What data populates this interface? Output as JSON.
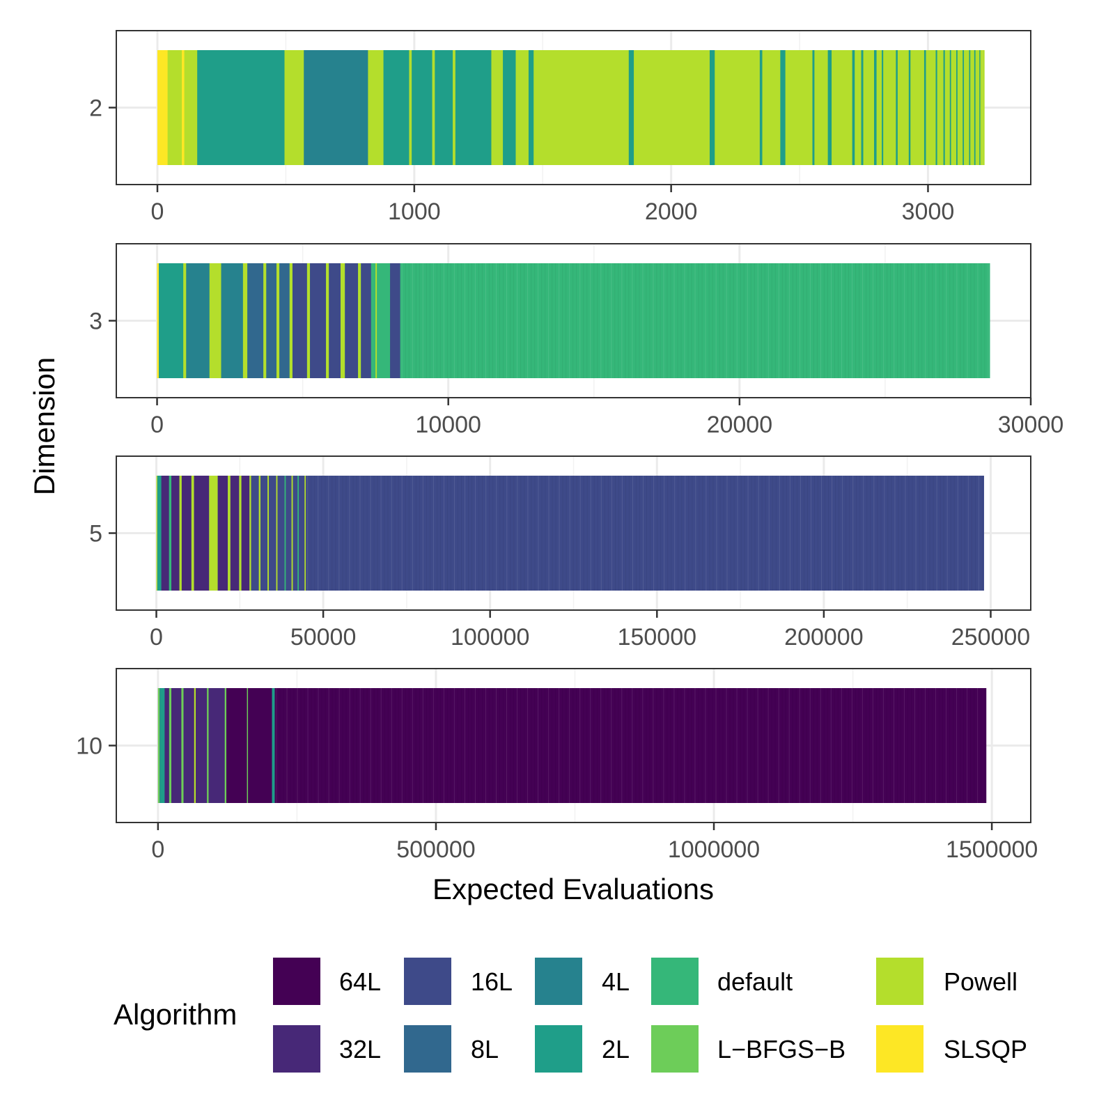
{
  "chart_data": {
    "type": "bar",
    "subtype": "stacked-horizontal-segments",
    "xlabel": "Expected Evaluations",
    "ylabel": "Dimension",
    "legend": {
      "title": "Algorithm",
      "position": "bottom",
      "entries": [
        {
          "key": "64L",
          "label": "64L",
          "color": "#440154"
        },
        {
          "key": "32L",
          "label": "32L",
          "color": "#472877"
        },
        {
          "key": "16L",
          "label": "16L",
          "color": "#3E4A89"
        },
        {
          "key": "8L",
          "label": "8L",
          "color": "#31688E"
        },
        {
          "key": "4L",
          "label": "4L",
          "color": "#26828E"
        },
        {
          "key": "2L",
          "label": "2L",
          "color": "#1F9E89"
        },
        {
          "key": "default",
          "label": "default",
          "color": "#35B779"
        },
        {
          "key": "L-BFGS-B",
          "label": "L−BFGS−B",
          "color": "#6DCD59"
        },
        {
          "key": "Powell",
          "label": "Powell",
          "color": "#B4DE2C"
        },
        {
          "key": "SLSQP",
          "label": "SLSQP",
          "color": "#FDE725"
        }
      ]
    },
    "panels": [
      {
        "dimension": "2",
        "xlim": [
          -160,
          3400
        ],
        "ticks": [
          0,
          1000,
          2000,
          3000
        ],
        "tick_labels": [
          "0",
          "1000",
          "2000",
          "3000"
        ],
        "total": 3220,
        "fill_algorithm": "Powell",
        "segments": [
          [
            "SLSQP",
            0,
            40
          ],
          [
            "Powell",
            40,
            95
          ],
          [
            "SLSQP",
            95,
            105
          ],
          [
            "Powell",
            105,
            155
          ],
          [
            "2L",
            155,
            495
          ],
          [
            "Powell",
            495,
            570
          ],
          [
            "4L",
            570,
            820
          ],
          [
            "Powell",
            820,
            880
          ],
          [
            "2L",
            880,
            980
          ],
          [
            "Powell",
            980,
            990
          ],
          [
            "2L",
            990,
            1070
          ],
          [
            "Powell",
            1070,
            1080
          ],
          [
            "2L",
            1080,
            1150
          ],
          [
            "Powell",
            1150,
            1160
          ],
          [
            "2L",
            1160,
            1300
          ],
          [
            "Powell",
            1300,
            1345
          ],
          [
            "2L",
            1345,
            1395
          ],
          [
            "Powell",
            1395,
            1445
          ],
          [
            "2L",
            1445,
            1465
          ],
          [
            "Powell",
            1465,
            1835
          ],
          [
            "2L",
            1835,
            1855
          ],
          [
            "Powell",
            1855,
            2150
          ],
          [
            "2L",
            2150,
            2170
          ],
          [
            "Powell",
            2170,
            2345
          ],
          [
            "2L",
            2345,
            2355
          ],
          [
            "Powell",
            2355,
            2425
          ],
          [
            "2L",
            2425,
            2445
          ],
          [
            "Powell",
            2445,
            2550
          ],
          [
            "2L",
            2550,
            2558
          ],
          [
            "Powell",
            2558,
            2610
          ],
          [
            "2L",
            2610,
            2625
          ],
          [
            "Powell",
            2625,
            2705
          ],
          [
            "2L",
            2705,
            2715
          ],
          [
            "Powell",
            2715,
            2740
          ],
          [
            "2L",
            2740,
            2748
          ],
          [
            "Powell",
            2748,
            2790
          ],
          [
            "2L",
            2790,
            2800
          ],
          [
            "Powell",
            2800,
            2820
          ],
          [
            "2L",
            2820,
            2826
          ],
          [
            "Powell",
            2826,
            2875
          ],
          [
            "2L",
            2875,
            2882
          ],
          [
            "Powell",
            2882,
            2925
          ],
          [
            "2L",
            2925,
            2932
          ],
          [
            "Powell",
            2932,
            2985
          ],
          [
            "2L",
            2985,
            2992
          ],
          [
            "Powell",
            2992,
            3030
          ],
          [
            "2L",
            3030,
            3036
          ],
          [
            "Powell",
            3036,
            3060
          ],
          [
            "2L",
            3060,
            3066
          ],
          [
            "Powell",
            3066,
            3085
          ],
          [
            "2L",
            3085,
            3090
          ],
          [
            "Powell",
            3090,
            3110
          ],
          [
            "2L",
            3110,
            3115
          ],
          [
            "Powell",
            3115,
            3135
          ],
          [
            "2L",
            3135,
            3140
          ],
          [
            "Powell",
            3140,
            3160
          ],
          [
            "2L",
            3160,
            3165
          ],
          [
            "Powell",
            3165,
            3180
          ],
          [
            "2L",
            3180,
            3185
          ],
          [
            "Powell",
            3185,
            3200
          ],
          [
            "2L",
            3200,
            3204
          ],
          [
            "Powell",
            3204,
            3220
          ]
        ]
      },
      {
        "dimension": "3",
        "xlim": [
          -1400,
          30000
        ],
        "ticks": [
          0,
          10000,
          20000,
          30000
        ],
        "tick_labels": [
          "0",
          "10000",
          "20000",
          "30000"
        ],
        "total": 28600,
        "fill_algorithm": "default",
        "segments": [
          [
            "SLSQP",
            0,
            60
          ],
          [
            "2L",
            60,
            900
          ],
          [
            "Powell",
            900,
            1000
          ],
          [
            "4L",
            1000,
            1800
          ],
          [
            "Powell",
            1800,
            2200
          ],
          [
            "4L",
            2200,
            2950
          ],
          [
            "Powell",
            2950,
            3100
          ],
          [
            "8L",
            3100,
            3650
          ],
          [
            "Powell",
            3650,
            3750
          ],
          [
            "8L",
            3750,
            4100
          ],
          [
            "Powell",
            4100,
            4200
          ],
          [
            "8L",
            4200,
            4550
          ],
          [
            "Powell",
            4550,
            4650
          ],
          [
            "16L",
            4650,
            5150
          ],
          [
            "Powell",
            5150,
            5250
          ],
          [
            "16L",
            5250,
            5800
          ],
          [
            "Powell",
            5800,
            5900
          ],
          [
            "16L",
            5900,
            6300
          ],
          [
            "Powell",
            6300,
            6450
          ],
          [
            "16L",
            6450,
            6900
          ],
          [
            "Powell",
            6900,
            7000
          ],
          [
            "16L",
            7000,
            7350
          ],
          [
            "default",
            7350,
            7500
          ],
          [
            "Powell",
            7500,
            7550
          ],
          [
            "default",
            7550,
            8000
          ],
          [
            "16L",
            8000,
            8350
          ],
          [
            "default",
            8350,
            28600
          ]
        ]
      },
      {
        "dimension": "5",
        "xlim": [
          -12000,
          262000
        ],
        "ticks": [
          0,
          50000,
          100000,
          150000,
          200000,
          250000
        ],
        "tick_labels": [
          "0",
          "50000",
          "100000",
          "150000",
          "200000",
          "250000"
        ],
        "total": 248000,
        "fill_algorithm": "16L",
        "segments": [
          [
            "Powell",
            0,
            300
          ],
          [
            "2L",
            300,
            1500
          ],
          [
            "32L",
            1500,
            3800
          ],
          [
            "default",
            3800,
            4500
          ],
          [
            "32L",
            4500,
            6900
          ],
          [
            "Powell",
            6900,
            7600
          ],
          [
            "32L",
            7600,
            10500
          ],
          [
            "Powell",
            10500,
            11300
          ],
          [
            "32L",
            11300,
            15800
          ],
          [
            "Powell",
            15800,
            18400
          ],
          [
            "32L",
            18400,
            21400
          ],
          [
            "Powell",
            21400,
            22200
          ],
          [
            "32L",
            22200,
            24800
          ],
          [
            "Powell",
            24800,
            25500
          ],
          [
            "32L",
            25500,
            27900
          ],
          [
            "Powell",
            27900,
            28400
          ],
          [
            "16L",
            28400,
            30700
          ],
          [
            "Powell",
            30700,
            31200
          ],
          [
            "16L",
            31200,
            33300
          ],
          [
            "Powell",
            33300,
            33700
          ],
          [
            "16L",
            33700,
            35900
          ],
          [
            "Powell",
            35900,
            36300
          ],
          [
            "16L",
            36300,
            38400
          ],
          [
            "default",
            38400,
            38800
          ],
          [
            "16L",
            38800,
            40500
          ],
          [
            "Powell",
            40500,
            40900
          ],
          [
            "16L",
            40900,
            42300
          ],
          [
            "default",
            42300,
            42700
          ],
          [
            "16L",
            42700,
            44400
          ],
          [
            "Powell",
            44400,
            44800
          ],
          [
            "16L",
            44800,
            248000
          ]
        ]
      },
      {
        "dimension": "10",
        "xlim": [
          -75000,
          1570000
        ],
        "ticks": [
          0,
          500000,
          1000000,
          1500000
        ],
        "tick_labels": [
          "0",
          "500000",
          "1000000",
          "1500000"
        ],
        "total": 1490000,
        "fill_algorithm": "64L",
        "segments": [
          [
            "L-BFGS-B",
            0,
            3000
          ],
          [
            "2L",
            3000,
            12000
          ],
          [
            "32L",
            12000,
            20000
          ],
          [
            "L-BFGS-B",
            20000,
            24000
          ],
          [
            "32L",
            24000,
            42000
          ],
          [
            "L-BFGS-B",
            42000,
            46000
          ],
          [
            "32L",
            46000,
            65000
          ],
          [
            "Powell",
            65000,
            68000
          ],
          [
            "32L",
            68000,
            88000
          ],
          [
            "L-BFGS-B",
            88000,
            91000
          ],
          [
            "32L",
            91000,
            120000
          ],
          [
            "L-BFGS-B",
            120000,
            123000
          ],
          [
            "64L",
            123000,
            160000
          ],
          [
            "L-BFGS-B",
            160000,
            162000
          ],
          [
            "64L",
            162000,
            205000
          ],
          [
            "2L",
            205000,
            210000
          ],
          [
            "64L",
            210000,
            1490000
          ]
        ]
      }
    ]
  }
}
